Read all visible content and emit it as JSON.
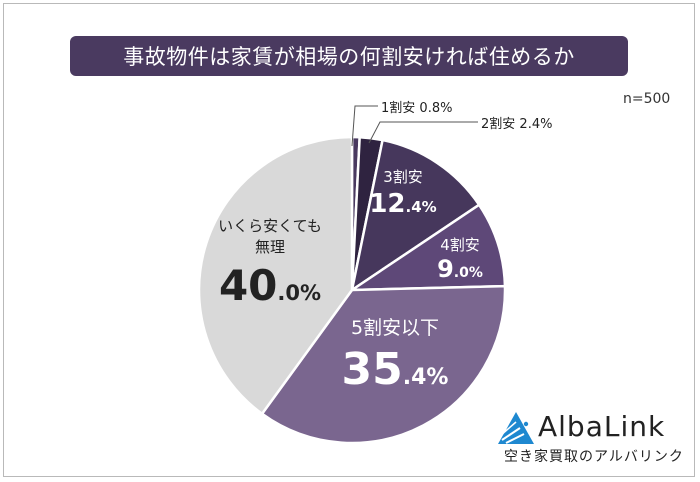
{
  "title": "事故物件は家賃が相場の何割安ければ住めるか",
  "sample_size": "n=500",
  "chart_data": {
    "type": "pie",
    "title": "事故物件は家賃が相場の何割安ければ住めるか",
    "subtitle": "n=500",
    "categories": [
      "1割安",
      "2割安",
      "3割安",
      "4割安",
      "5割安以下",
      "いくら安くても無理"
    ],
    "values": [
      0.8,
      2.4,
      12.4,
      9.0,
      35.4,
      40.0
    ],
    "unit": "%",
    "start_angle": "12 o'clock",
    "direction": "clockwise",
    "colors": [
      "#4a3a60",
      "#2f2340",
      "#46375c",
      "#5e4878",
      "#7a668f",
      "#d9d9d9"
    ],
    "legend": "none (direct labels)"
  },
  "labels": {
    "s1": {
      "cat": "1割安",
      "value": "0.8%"
    },
    "s2": {
      "cat": "2割安",
      "value": "2.4%"
    },
    "s3": {
      "cat": "3割安",
      "int": "12",
      "dec": ".4%"
    },
    "s4": {
      "cat": "4割安",
      "int": "9",
      "dec": ".0%"
    },
    "s5": {
      "cat": "5割安以下",
      "int": "35",
      "dec": ".4%"
    },
    "s6": {
      "cat_line1": "いくら安くても",
      "cat_line2": "無理",
      "int": "40",
      "dec": ".0%"
    }
  },
  "logo": {
    "name": "AlbaLink",
    "tagline": "空き家買取のアルバリンク",
    "color": "#1e88d0"
  }
}
